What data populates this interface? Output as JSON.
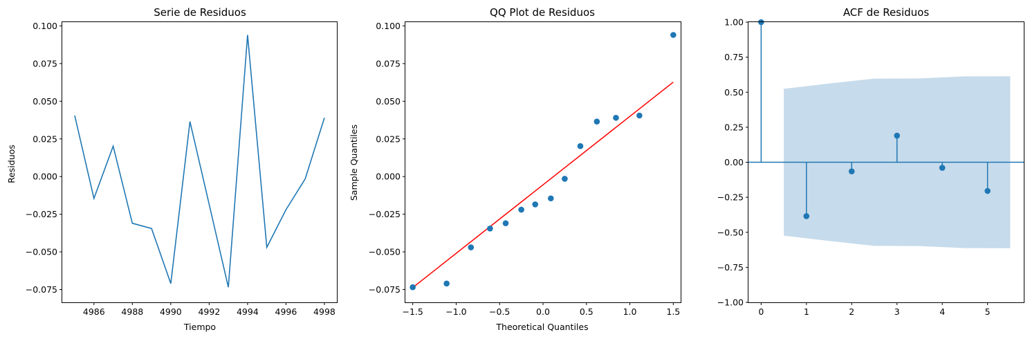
{
  "colors": {
    "series": "#1f77b4",
    "fit_line": "#ff0000",
    "confidence_band": "#c6dbeb",
    "axes": "#000000",
    "background": "#ffffff"
  },
  "chart_data": [
    {
      "type": "line",
      "title": "Serie de Residuos",
      "xlabel": "Tiempo",
      "ylabel": "Residuos",
      "xlim": [
        4984.35,
        4998.65
      ],
      "ylim": [
        -0.0835,
        0.1025
      ],
      "xticks": [
        4986,
        4988,
        4990,
        4992,
        4994,
        4996,
        4998
      ],
      "xtick_labels": [
        "4986",
        "4988",
        "4990",
        "4992",
        "4994",
        "4996",
        "4998"
      ],
      "yticks": [
        -0.075,
        -0.05,
        -0.025,
        0.0,
        0.025,
        0.05,
        0.075,
        0.1
      ],
      "ytick_labels": [
        "−0.075",
        "−0.050",
        "−0.025",
        "0.000",
        "0.025",
        "0.050",
        "0.075",
        "0.100"
      ],
      "x": [
        4985,
        4986,
        4987,
        4988,
        4989,
        4990,
        4991,
        4992,
        4993,
        4994,
        4995,
        4996,
        4997,
        4998
      ],
      "y": [
        0.0405,
        -0.0145,
        0.0202,
        -0.031,
        -0.0345,
        -0.071,
        0.0365,
        -0.0185,
        -0.0735,
        0.094,
        -0.047,
        -0.022,
        -0.0015,
        0.039
      ],
      "grid": false
    },
    {
      "type": "scatter",
      "title": "QQ Plot de Residuos",
      "xlabel": "Theoretical Quantiles",
      "ylabel": "Sample Quantiles",
      "xlim": [
        -1.585,
        1.585
      ],
      "ylim": [
        -0.0835,
        0.1025
      ],
      "xticks": [
        -1.5,
        -1.0,
        -0.5,
        0.0,
        0.5,
        1.0,
        1.5
      ],
      "xtick_labels": [
        "−1.5",
        "−1.0",
        "−0.5",
        "0.0",
        "0.5",
        "1.0",
        "1.5"
      ],
      "yticks": [
        -0.075,
        -0.05,
        -0.025,
        0.0,
        0.025,
        0.05,
        0.075,
        0.1
      ],
      "ytick_labels": [
        "−0.075",
        "−0.050",
        "−0.025",
        "0.000",
        "0.025",
        "0.050",
        "0.075",
        "0.100"
      ],
      "x": [
        -1.5,
        -1.11,
        -0.83,
        -0.61,
        -0.43,
        -0.25,
        -0.09,
        0.09,
        0.25,
        0.43,
        0.62,
        0.84,
        1.11,
        1.5
      ],
      "y": [
        -0.0735,
        -0.071,
        -0.047,
        -0.0345,
        -0.031,
        -0.022,
        -0.0185,
        -0.0145,
        -0.0015,
        0.0202,
        0.0365,
        0.039,
        0.0405,
        0.094
      ],
      "fit_line": {
        "x": [
          -1.5,
          1.5
        ],
        "y": [
          -0.0737,
          0.0627
        ]
      },
      "grid": false
    },
    {
      "type": "stem",
      "title": "ACF de Residuos",
      "xlabel": "",
      "ylabel": "",
      "xlim": [
        -0.28,
        5.8
      ],
      "ylim": [
        -1.0,
        1.0
      ],
      "xticks": [
        0,
        1,
        2,
        3,
        4,
        5
      ],
      "xtick_labels": [
        "0",
        "1",
        "2",
        "3",
        "4",
        "5"
      ],
      "yticks": [
        -1.0,
        -0.75,
        -0.5,
        -0.25,
        0.0,
        0.25,
        0.5,
        0.75,
        1.0
      ],
      "ytick_labels": [
        "−1.00",
        "−0.75",
        "−0.50",
        "−0.25",
        "0.00",
        "0.25",
        "0.50",
        "0.75",
        "1.00"
      ],
      "lags": [
        0,
        1,
        2,
        3,
        4,
        5
      ],
      "values": [
        1.0,
        -0.385,
        -0.065,
        0.19,
        -0.04,
        -0.205
      ],
      "confidence_band": {
        "x": [
          0.5,
          1.5,
          2.5,
          3.5,
          4.5,
          5.5
        ],
        "upper": [
          0.524,
          0.562,
          0.597,
          0.598,
          0.613,
          0.614
        ]
      },
      "grid": false
    }
  ]
}
